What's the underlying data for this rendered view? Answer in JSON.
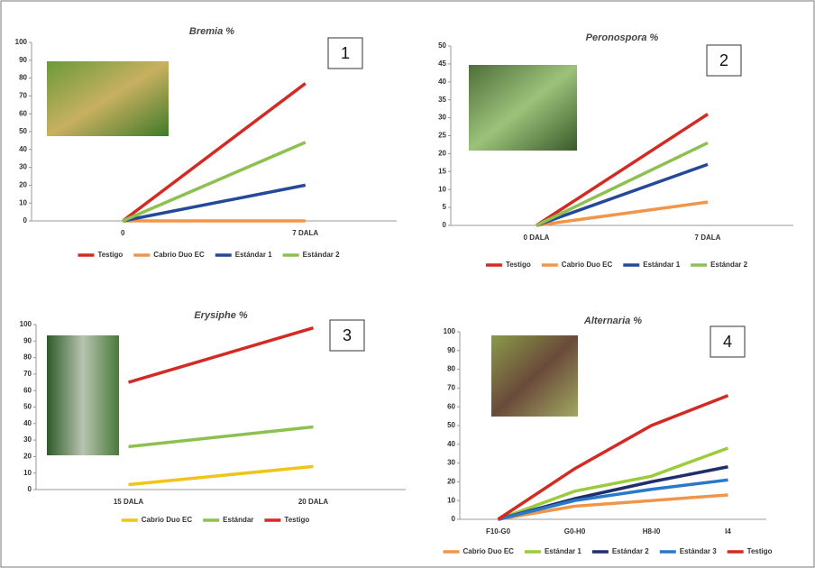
{
  "chart_data": [
    {
      "type": "line",
      "title": "Bremia %",
      "panel_number": "1",
      "categories": [
        "0",
        "7 DALA"
      ],
      "ylim": [
        0,
        100
      ],
      "yticks": [
        0,
        10,
        20,
        30,
        40,
        50,
        60,
        70,
        80,
        90,
        100
      ],
      "series": [
        {
          "name": "Testigo",
          "color": "#d42a24",
          "values": [
            0,
            77
          ]
        },
        {
          "name": "Cabrio Duo EC",
          "color": "#f0954a",
          "values": [
            0,
            0
          ]
        },
        {
          "name": "Estándar 1",
          "color": "#24489a",
          "values": [
            0,
            20
          ]
        },
        {
          "name": "Estándar 2",
          "color": "#8cc152",
          "values": [
            0,
            44
          ]
        }
      ]
    },
    {
      "type": "line",
      "title": "Peronospora %",
      "panel_number": "2",
      "categories": [
        "0 DALA",
        "7 DALA"
      ],
      "ylim": [
        0,
        50
      ],
      "yticks": [
        0,
        5,
        10,
        15,
        20,
        25,
        30,
        35,
        40,
        45,
        50
      ],
      "series": [
        {
          "name": "Testigo",
          "color": "#d42a24",
          "values": [
            0,
            31
          ]
        },
        {
          "name": "Cabrio Duo EC",
          "color": "#f0954a",
          "values": [
            0,
            6.5
          ]
        },
        {
          "name": "Estándar 1",
          "color": "#24489a",
          "values": [
            0,
            17
          ]
        },
        {
          "name": "Estándar 2",
          "color": "#8cc152",
          "values": [
            0,
            23
          ]
        }
      ]
    },
    {
      "type": "line",
      "title": "Erysiphe %",
      "panel_number": "3",
      "categories": [
        "15 DALA",
        "20 DALA"
      ],
      "ylim": [
        0,
        100
      ],
      "yticks": [
        0,
        10,
        20,
        30,
        40,
        50,
        60,
        70,
        80,
        90,
        100
      ],
      "series": [
        {
          "name": "Cabrio Duo EC",
          "color": "#f2c418",
          "values": [
            3,
            14
          ]
        },
        {
          "name": "Estándar",
          "color": "#8cc152",
          "values": [
            26,
            38
          ]
        },
        {
          "name": "Testigo",
          "color": "#d42a24",
          "values": [
            65,
            98
          ]
        }
      ]
    },
    {
      "type": "line",
      "title": "Alternaria %",
      "panel_number": "4",
      "categories": [
        "F10-G0",
        "G0-H0",
        "H8-I0",
        "I4"
      ],
      "ylim": [
        0,
        100
      ],
      "yticks": [
        0,
        10,
        20,
        30,
        40,
        50,
        60,
        70,
        80,
        90,
        100
      ],
      "series": [
        {
          "name": "Cabrio Duo EC",
          "color": "#f0954a",
          "values": [
            0,
            7,
            10,
            13
          ]
        },
        {
          "name": "Estándar 1",
          "color": "#9ccc3c",
          "values": [
            0,
            15,
            23,
            38
          ]
        },
        {
          "name": "Estándar 2",
          "color": "#1f2f6e",
          "values": [
            0,
            11,
            20,
            28
          ]
        },
        {
          "name": "Estándar 3",
          "color": "#2a78c8",
          "values": [
            0,
            10,
            16,
            21
          ]
        },
        {
          "name": "Testigo",
          "color": "#d42a24",
          "values": [
            0,
            27,
            50,
            66
          ]
        }
      ]
    }
  ]
}
